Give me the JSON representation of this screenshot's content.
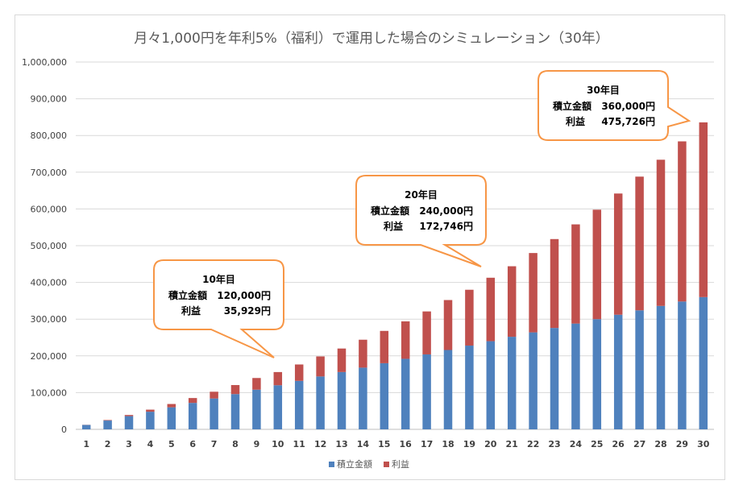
{
  "chart_data": {
    "type": "bar",
    "stacked": true,
    "title": "月々1,000円を年利5%（福利）で運用した場合のシミュレーション（30年）",
    "xlabel": "",
    "ylabel": "",
    "categories": [
      "1",
      "2",
      "3",
      "4",
      "5",
      "6",
      "7",
      "8",
      "9",
      "10",
      "11",
      "12",
      "13",
      "14",
      "15",
      "16",
      "17",
      "18",
      "19",
      "20",
      "21",
      "22",
      "23",
      "24",
      "25",
      "26",
      "27",
      "28",
      "29",
      "30"
    ],
    "yticks": [
      "0",
      "100,000",
      "200,000",
      "300,000",
      "400,000",
      "500,000",
      "600,000",
      "700,000",
      "800,000",
      "900,000",
      "1,000,000"
    ],
    "ylim": [
      0,
      1000000
    ],
    "grid": true,
    "legend_position": "bottom",
    "series": [
      {
        "name": "積立金額",
        "color": "#4f81bd",
        "values": [
          12000,
          24000,
          36000,
          48000,
          60000,
          72000,
          84000,
          96000,
          108000,
          120000,
          132000,
          144000,
          156000,
          168000,
          180000,
          192000,
          204000,
          216000,
          228000,
          240000,
          252000,
          264000,
          276000,
          288000,
          300000,
          312000,
          324000,
          336000,
          348000,
          360000
        ]
      },
      {
        "name": "利益",
        "color": "#c0504d",
        "values": [
          328,
          1343,
          3094,
          5626,
          8988,
          13228,
          18400,
          24560,
          31764,
          35929,
          44592,
          54500,
          64000,
          76000,
          88000,
          102000,
          117000,
          136000,
          152000,
          172746,
          192000,
          216000,
          242000,
          270000,
          298000,
          330000,
          364000,
          398000,
          436000,
          475726
        ]
      }
    ],
    "annotations": [
      {
        "year": "10年目",
        "amount_label": "積立金額",
        "amount": "120,000円",
        "profit_label": "利益",
        "profit": "35,929円"
      },
      {
        "year": "20年目",
        "amount_label": "積立金額",
        "amount": "240,000円",
        "profit_label": "利益",
        "profit": "172,746円"
      },
      {
        "year": "30年目",
        "amount_label": "積立金額",
        "amount": "360,000円",
        "profit_label": "利益",
        "profit": "475,726円"
      }
    ]
  }
}
